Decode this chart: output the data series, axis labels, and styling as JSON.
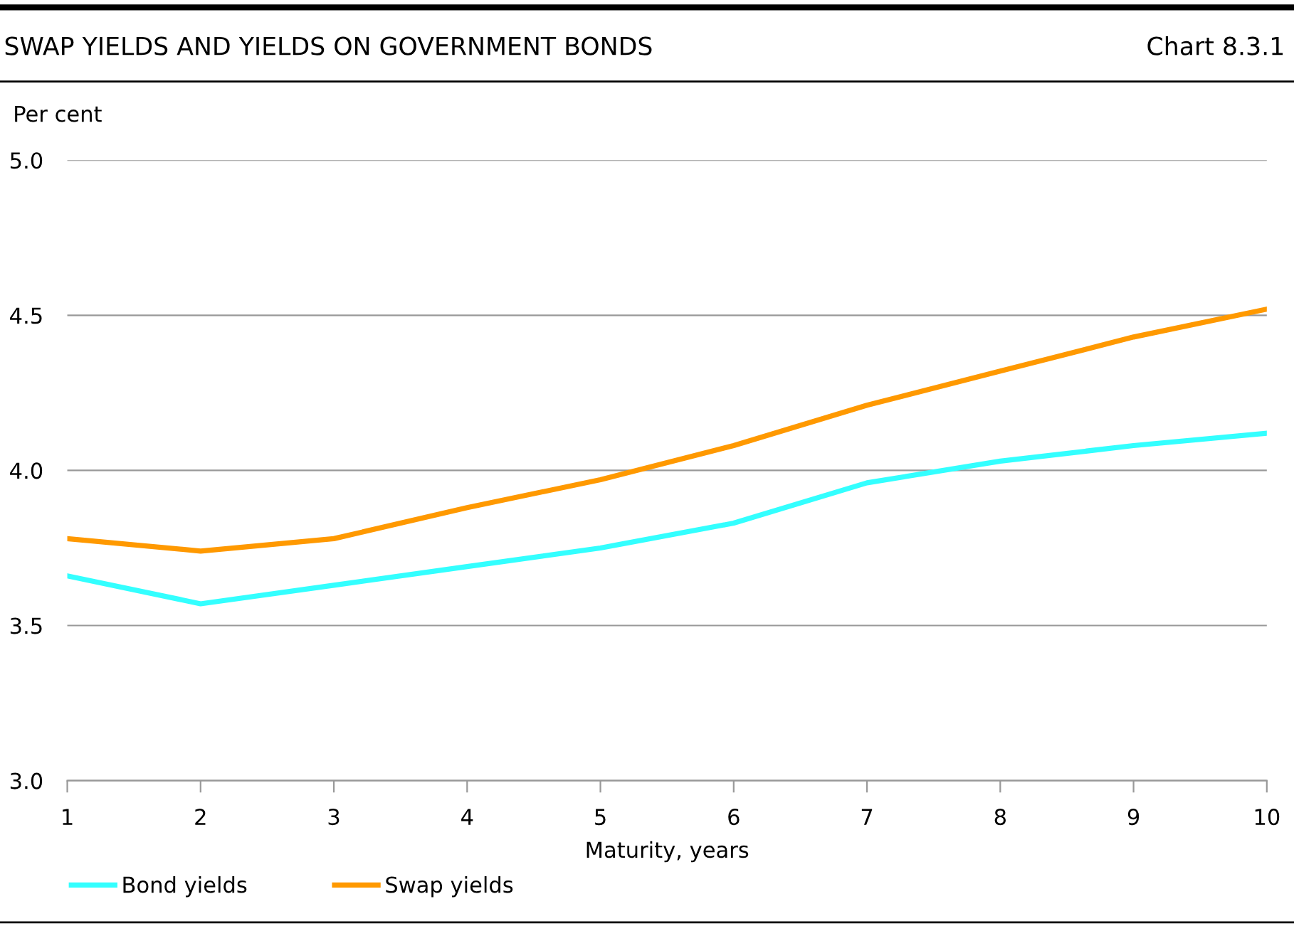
{
  "chart_data": {
    "type": "line",
    "title": "SWAP YIELDS AND YIELDS ON GOVERNMENT BONDS",
    "annotations": [
      "Chart 8.3.1"
    ],
    "ylabel": "Per cent",
    "xlabel": "Maturity, years",
    "x": [
      1,
      2,
      3,
      4,
      5,
      6,
      7,
      8,
      9,
      10
    ],
    "series": [
      {
        "name": "Bond yields",
        "color": "#33ffff",
        "values": [
          3.66,
          3.57,
          3.63,
          3.69,
          3.75,
          3.83,
          3.96,
          4.03,
          4.08,
          4.12
        ]
      },
      {
        "name": "Swap yields",
        "color": "#ff9900",
        "values": [
          3.78,
          3.74,
          3.78,
          3.88,
          3.97,
          4.08,
          4.21,
          4.32,
          4.43,
          4.52
        ]
      }
    ],
    "xlim": [
      1,
      10
    ],
    "xticks": [
      1,
      2,
      3,
      4,
      5,
      6,
      7,
      8,
      9,
      10
    ],
    "ylim": [
      3.0,
      5.0
    ],
    "yticks": [
      {
        "value": 3.0,
        "label": "3.0"
      },
      {
        "value": 3.5,
        "label": "3.5"
      },
      {
        "value": 4.0,
        "label": "4.0"
      },
      {
        "value": 4.5,
        "label": "4.5"
      },
      {
        "value": 5.0,
        "label": "5.0"
      }
    ],
    "grid": "y",
    "legend": "bottom left",
    "marker": "none",
    "line_style": "solid"
  }
}
